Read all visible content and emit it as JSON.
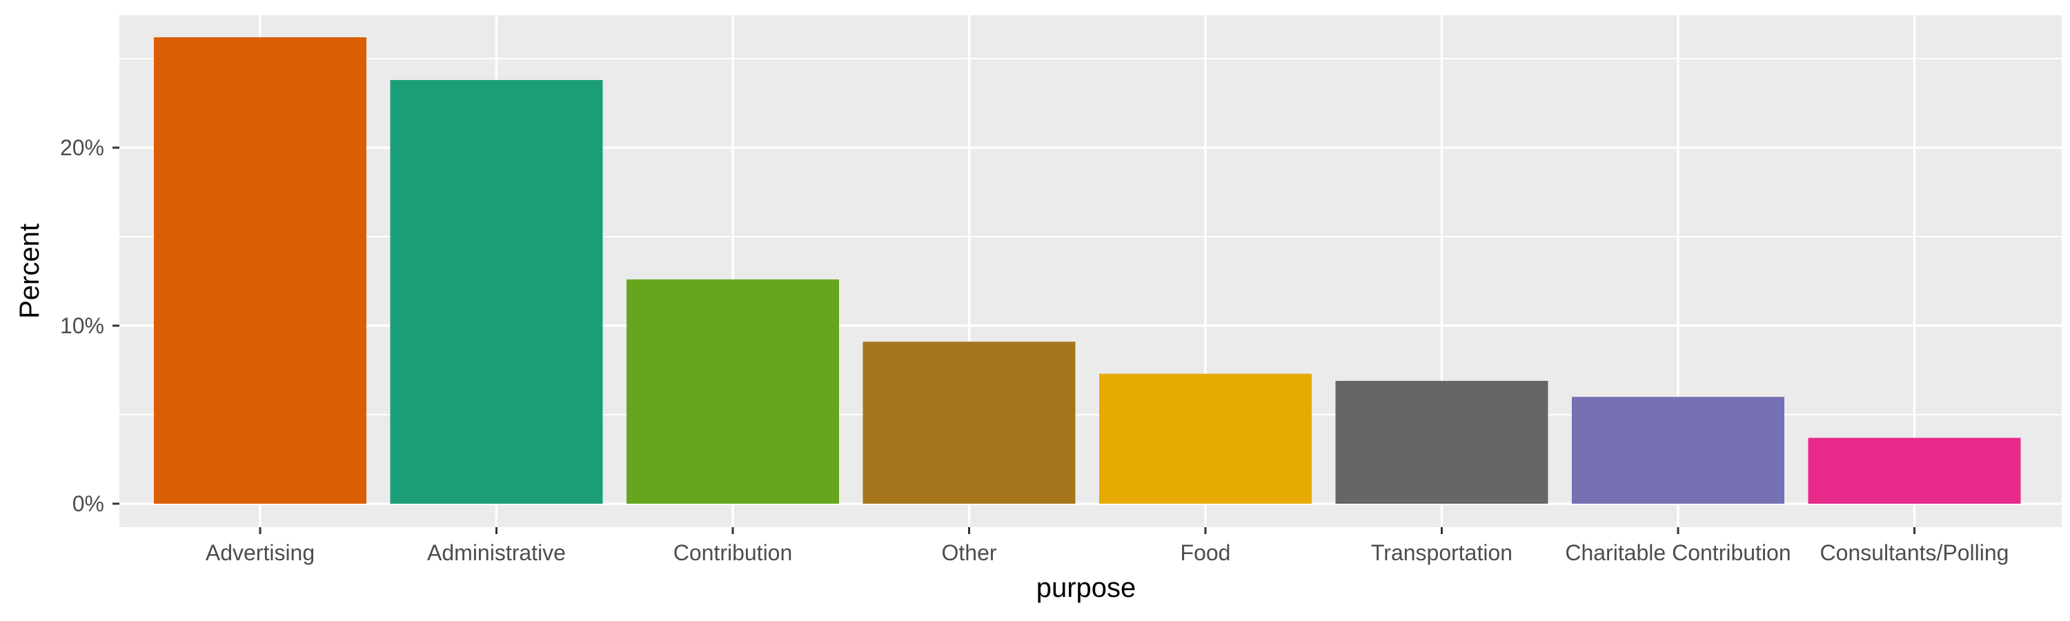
{
  "chart_data": {
    "type": "bar",
    "title": "",
    "xlabel": "purpose",
    "ylabel": "Percent",
    "categories": [
      "Advertising",
      "Administrative",
      "Contribution",
      "Other",
      "Food",
      "Transportation",
      "Charitable Contribution",
      "Consultants/Polling"
    ],
    "values": [
      26.2,
      23.8,
      12.6,
      9.1,
      7.3,
      6.9,
      6.0,
      3.7
    ],
    "colors": [
      "#D95F02",
      "#1B9E77",
      "#66A61E",
      "#A6761D",
      "#E6AB02",
      "#666666",
      "#7570B3",
      "#E7298A"
    ],
    "ylim": [
      0,
      27.5
    ],
    "yticks": [
      0,
      10,
      20
    ],
    "ytick_labels": [
      "0%",
      "10%",
      "20%"
    ],
    "grid": true,
    "panel_background": "#EBEBEB",
    "grid_color": "#FFFFFF",
    "legend": "none"
  }
}
